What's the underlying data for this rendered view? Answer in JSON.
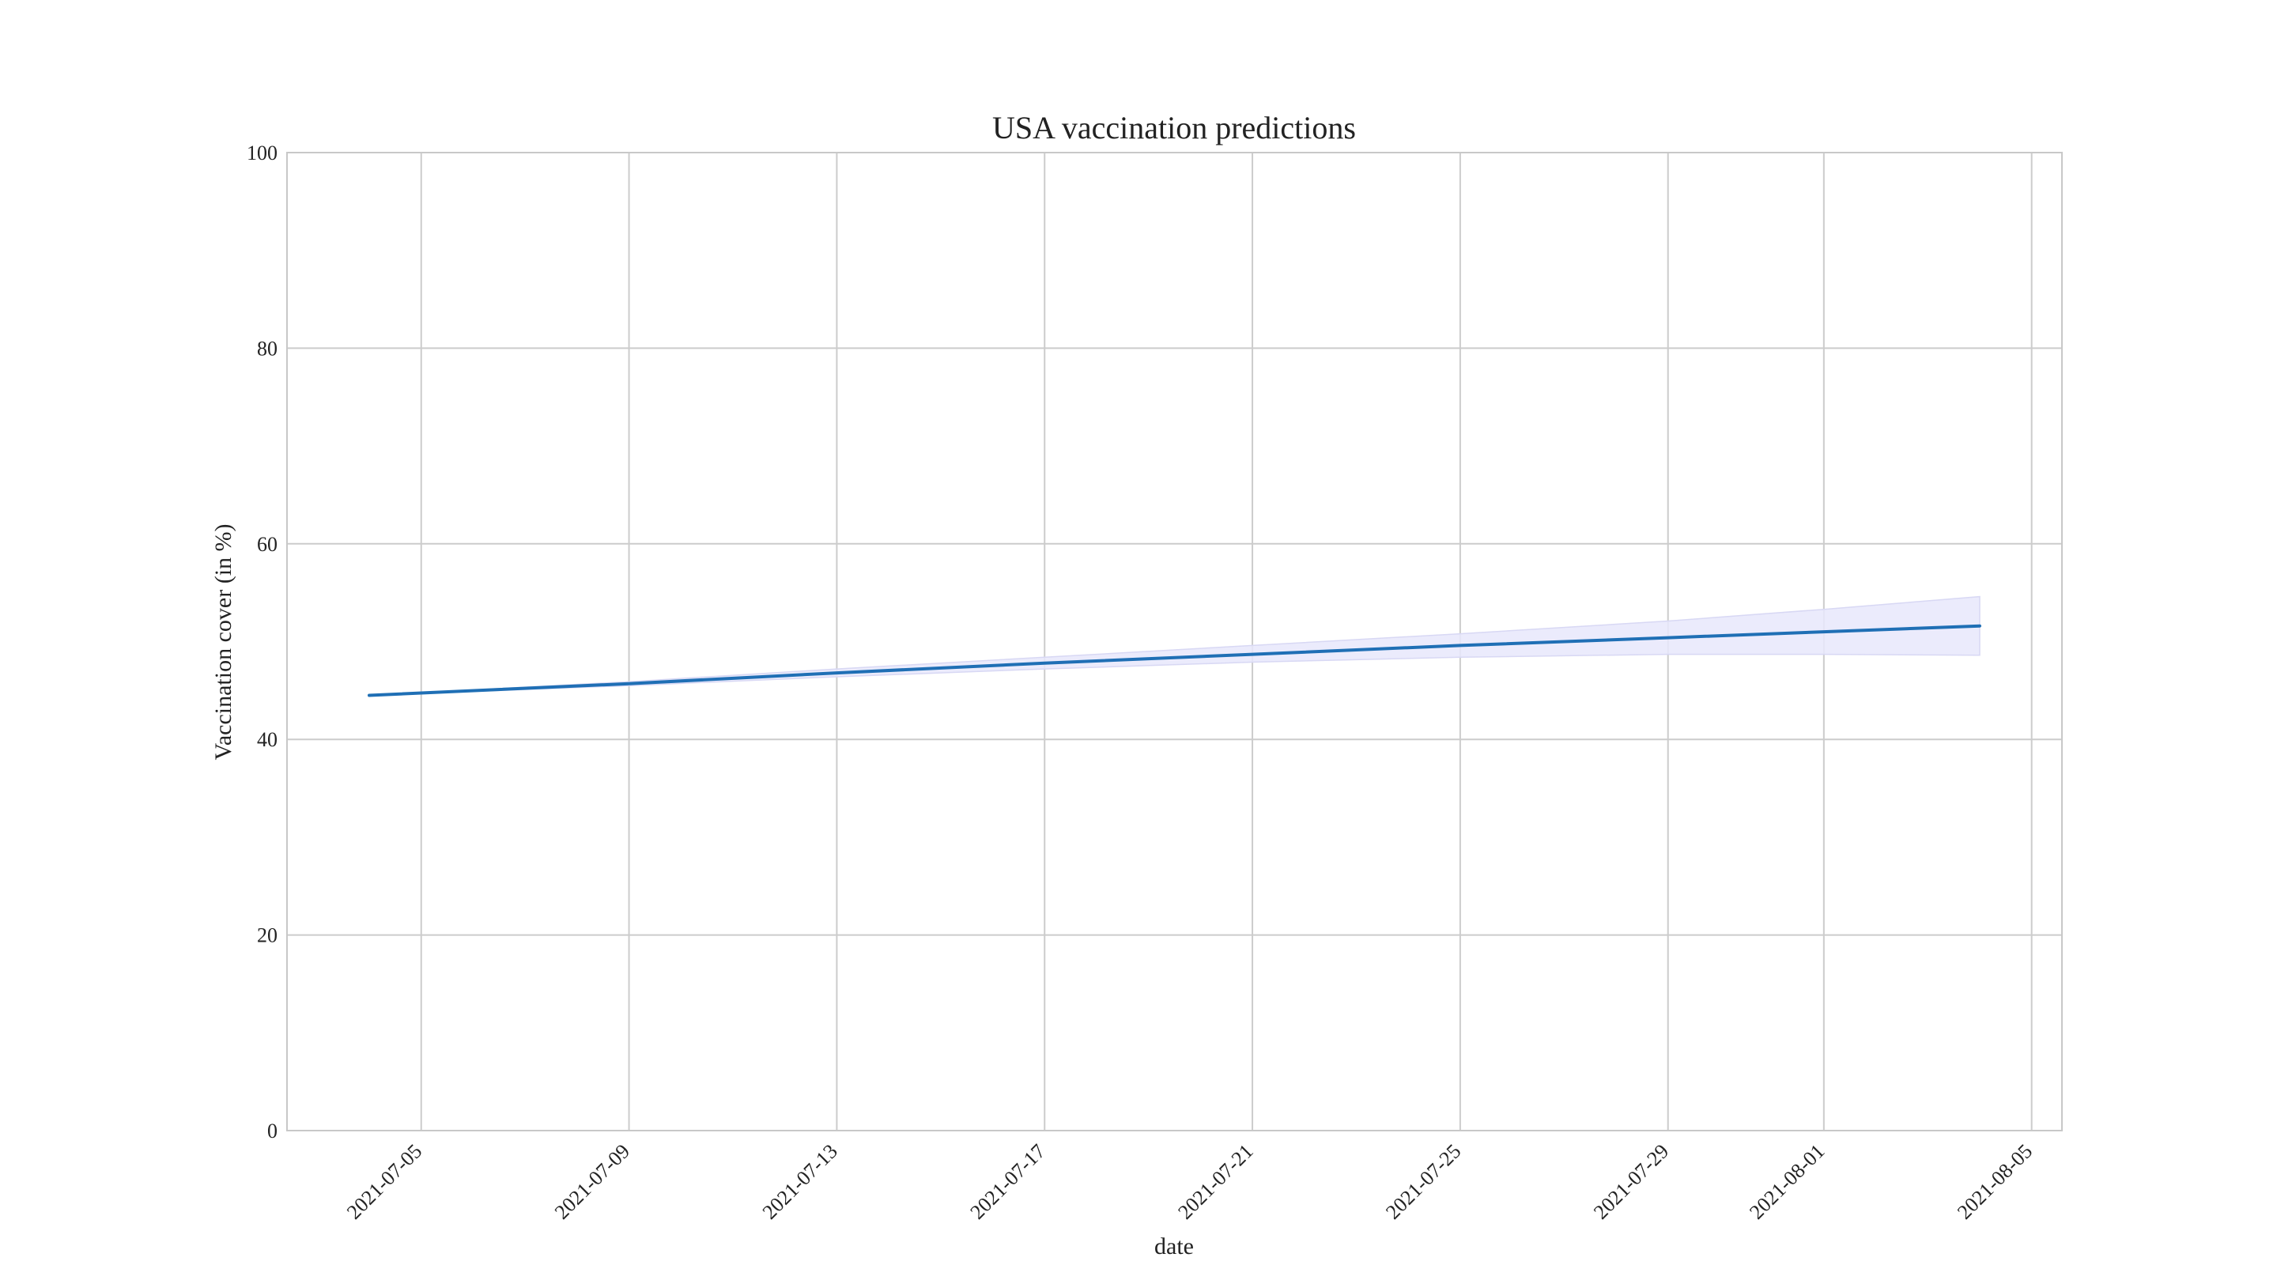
{
  "chart_data": {
    "type": "line",
    "title": "USA vaccination predictions",
    "xlabel": "date",
    "ylabel": "Vaccination cover (in %)",
    "ylim": [
      0,
      100
    ],
    "yticks": [
      0,
      20,
      40,
      60,
      80,
      100
    ],
    "xlim": [
      "2021-07-02T10:00",
      "2021-08-05T14:00"
    ],
    "xticks": [
      "2021-07-05",
      "2021-07-09",
      "2021-07-13",
      "2021-07-17",
      "2021-07-21",
      "2021-07-25",
      "2021-07-29",
      "2021-08-01",
      "2021-08-05"
    ],
    "grid": true,
    "series": [
      {
        "color": "#1f6fb5",
        "x": [
          "2021-07-04",
          "2021-07-09",
          "2021-07-13",
          "2021-07-17",
          "2021-07-21",
          "2021-07-25",
          "2021-07-29",
          "2021-08-01",
          "2021-08-04"
        ],
        "values": [
          44.5,
          45.7,
          46.8,
          47.8,
          48.7,
          49.6,
          50.4,
          51.0,
          51.6
        ],
        "lower": [
          44.5,
          45.5,
          46.4,
          47.2,
          47.9,
          48.4,
          48.7,
          48.7,
          48.6
        ],
        "upper": [
          44.5,
          45.9,
          47.2,
          48.4,
          49.6,
          50.8,
          52.1,
          53.3,
          54.6
        ],
        "band_color": "#e8e8fb"
      }
    ]
  }
}
